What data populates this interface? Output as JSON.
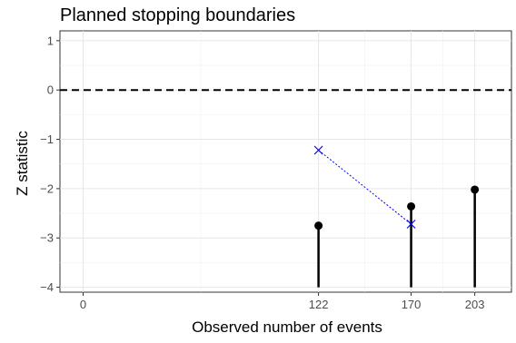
{
  "chart_data": {
    "type": "scatter",
    "title": "Planned stopping boundaries",
    "xlabel": "Observed number of events",
    "ylabel": "Z statistic",
    "xlim": [
      -12,
      222
    ],
    "ylim": [
      -4.1,
      1.2
    ],
    "x_ticks": [
      0,
      122,
      170,
      203
    ],
    "y_ticks": [
      1,
      0,
      -1,
      -2,
      -3,
      -4
    ],
    "x_tick_labels": [
      "0",
      "122",
      "170",
      "203"
    ],
    "y_tick_labels": [
      "1",
      "0",
      "−1",
      "−2",
      "−3",
      "−4"
    ],
    "grid": true,
    "reference_line": {
      "y": 0,
      "style": "dashed",
      "color": "#000000"
    },
    "series": [
      {
        "kind": "lollipop",
        "color": "#000000",
        "baseline": -4,
        "points": [
          {
            "x": 122,
            "y": -2.75
          },
          {
            "x": 170,
            "y": -2.36
          },
          {
            "x": 203,
            "y": -2.02
          }
        ]
      },
      {
        "kind": "cross-dotted-line",
        "color": "#0000ff",
        "points": [
          {
            "x": 122,
            "y": -1.22
          },
          {
            "x": 170,
            "y": -2.72
          }
        ]
      }
    ]
  }
}
